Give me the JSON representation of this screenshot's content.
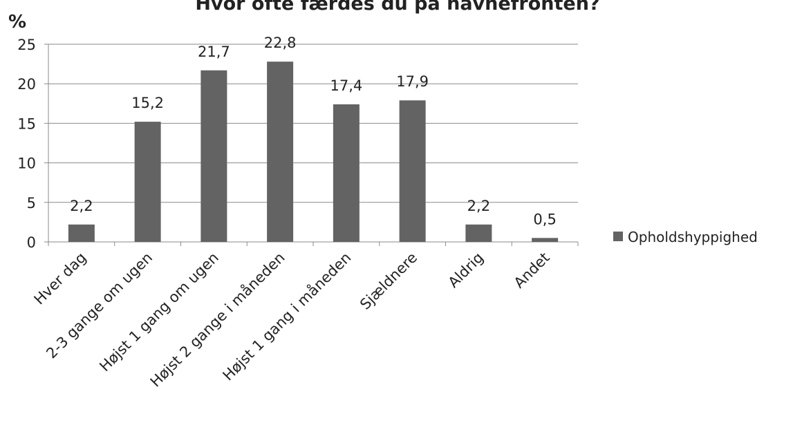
{
  "chart_data": {
    "type": "bar",
    "title": "Hvor ofte færdes du på havnefronten?",
    "y_label": "%",
    "categories": [
      "Hver dag",
      "2-3 gange om ugen",
      "Højst 1 gang om ugen",
      "Højst 2 gange i måneden",
      "Højst 1 gang i måneden",
      "Sjældnere",
      "Aldrig",
      "Andet"
    ],
    "series": [
      {
        "name": "Opholdshyppighed",
        "color": "#636363",
        "values": [
          2.2,
          15.2,
          21.7,
          22.8,
          17.4,
          17.9,
          2.2,
          0.5
        ],
        "value_labels": [
          "2,2",
          "15,2",
          "21,7",
          "22,8",
          "17,4",
          "17,9",
          "2,2",
          "0,5"
        ]
      }
    ],
    "ylim": [
      0,
      25
    ],
    "yticks": [
      0,
      5,
      10,
      15,
      20,
      25
    ],
    "grid": true,
    "legend": "right"
  }
}
